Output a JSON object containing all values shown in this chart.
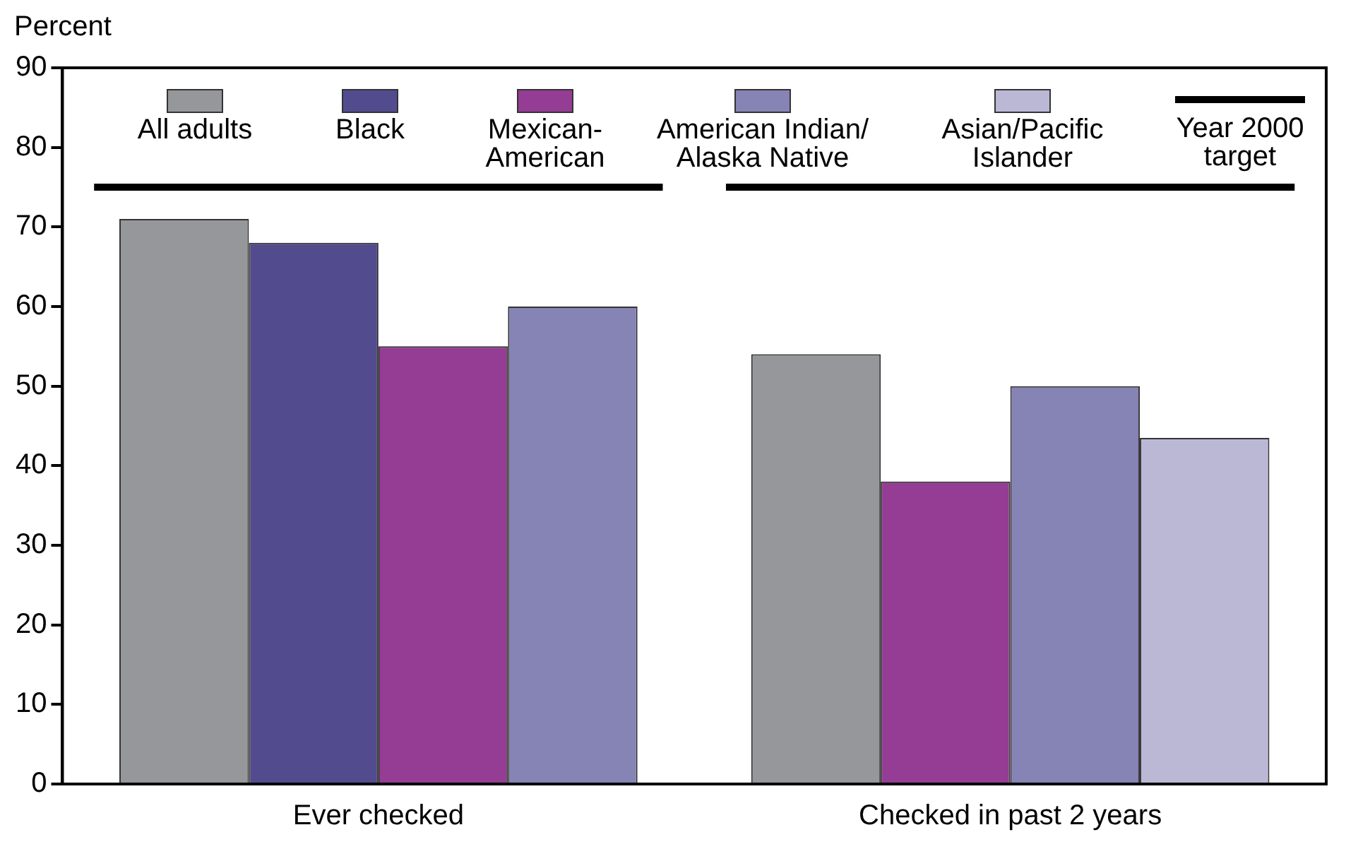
{
  "chart_data": {
    "type": "bar",
    "ylabel": "Percent",
    "categories": [
      "Ever checked",
      "Checked in past 2 years"
    ],
    "series": [
      {
        "name": "All adults",
        "color": "#96979b",
        "values": [
          71,
          54
        ]
      },
      {
        "name": "Black",
        "color": "#524c8e",
        "values": [
          68,
          null
        ]
      },
      {
        "name": "Mexican-American",
        "color": "#953c94",
        "values": [
          55,
          38
        ]
      },
      {
        "name": "American Indian/ Alaska Native",
        "color": "#8683b5",
        "values": [
          60,
          50
        ]
      },
      {
        "name": "Asian/Pacific Islander",
        "color": "#bbb8d6",
        "values": [
          null,
          43.5
        ]
      }
    ],
    "ref_lines": [
      {
        "axis": "y",
        "value": 75,
        "label": "Year 2000 target",
        "color": "#000000"
      }
    ],
    "ylim": [
      0,
      90
    ],
    "yticks": [
      0,
      10,
      20,
      30,
      40,
      50,
      60,
      70,
      80,
      90
    ],
    "grid": false,
    "legend": "top"
  }
}
